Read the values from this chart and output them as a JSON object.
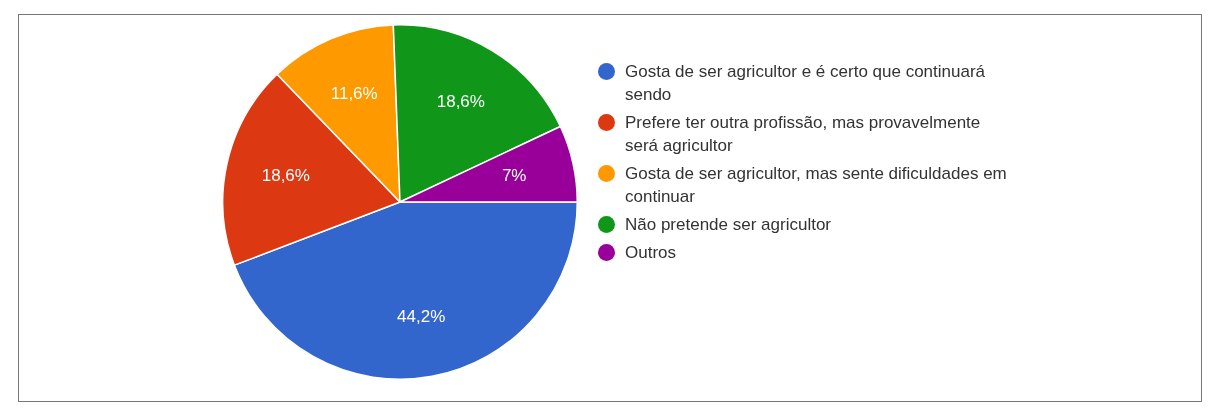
{
  "chart_data": {
    "type": "pie",
    "categories": [
      "Gosta de ser agricultor e é certo que continuará sendo",
      "Prefere ter outra profissão, mas provavelmente será agricultor",
      "Gosta de ser agricultor, mas sente dificuldades em continuar",
      "Não pretende ser agricultor",
      "Outros"
    ],
    "values": [
      44.2,
      18.6,
      11.6,
      18.6,
      7
    ],
    "colors": [
      "#3366cc",
      "#dc3912",
      "#ff9900",
      "#109618",
      "#990099"
    ],
    "value_labels": [
      "44,2%",
      "18,6%",
      "11,6%",
      "18,6%",
      "7%"
    ],
    "legend": "right"
  }
}
